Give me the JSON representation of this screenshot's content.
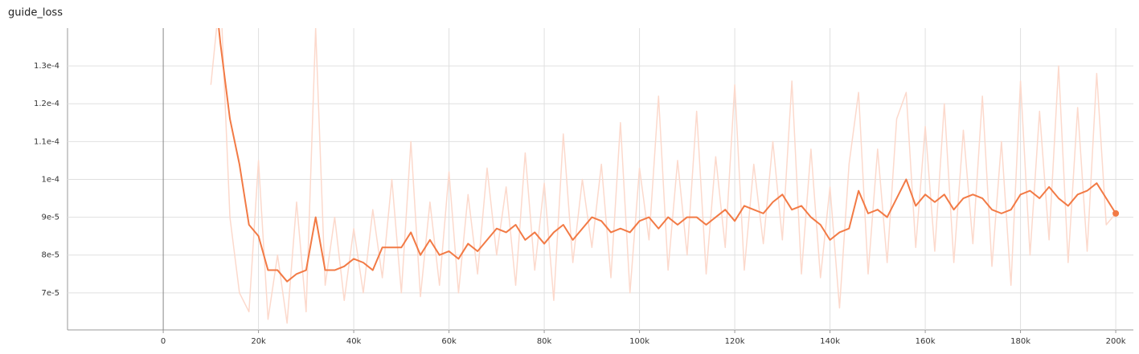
{
  "chart_data": {
    "type": "line",
    "title": "guide_loss",
    "x": [
      10000,
      12000,
      14000,
      16000,
      18000,
      20000,
      22000,
      24000,
      26000,
      28000,
      30000,
      32000,
      34000,
      36000,
      38000,
      40000,
      42000,
      44000,
      46000,
      48000,
      50000,
      52000,
      54000,
      56000,
      58000,
      60000,
      62000,
      64000,
      66000,
      68000,
      70000,
      72000,
      74000,
      76000,
      78000,
      80000,
      82000,
      84000,
      86000,
      88000,
      90000,
      92000,
      94000,
      96000,
      98000,
      100000,
      102000,
      104000,
      106000,
      108000,
      110000,
      112000,
      114000,
      116000,
      118000,
      120000,
      122000,
      124000,
      126000,
      128000,
      130000,
      132000,
      134000,
      136000,
      138000,
      140000,
      142000,
      144000,
      146000,
      148000,
      150000,
      152000,
      154000,
      156000,
      158000,
      160000,
      162000,
      164000,
      166000,
      168000,
      170000,
      172000,
      174000,
      176000,
      178000,
      180000,
      182000,
      184000,
      186000,
      188000,
      190000,
      192000,
      194000,
      196000,
      198000,
      200000
    ],
    "series": [
      {
        "color": "#fcd9cc",
        "values": [
          0.000125,
          0.00015,
          9e-05,
          7e-05,
          6.5e-05,
          0.000105,
          6.3e-05,
          8e-05,
          6.2e-05,
          9.4e-05,
          6.5e-05,
          0.00014,
          7.2e-05,
          9e-05,
          6.8e-05,
          8.7e-05,
          7e-05,
          9.2e-05,
          7.4e-05,
          0.0001,
          7e-05,
          0.00011,
          6.9e-05,
          9.4e-05,
          7.2e-05,
          0.000102,
          7e-05,
          9.6e-05,
          7.5e-05,
          0.000103,
          8e-05,
          9.8e-05,
          7.2e-05,
          0.000107,
          7.6e-05,
          9.9e-05,
          6.8e-05,
          0.000112,
          7.8e-05,
          0.0001,
          8.2e-05,
          0.000104,
          7.4e-05,
          0.000115,
          7e-05,
          0.000103,
          8.4e-05,
          0.000122,
          7.6e-05,
          0.000105,
          8e-05,
          0.000118,
          7.5e-05,
          0.000106,
          8.2e-05,
          0.000125,
          7.6e-05,
          0.000104,
          8.3e-05,
          0.00011,
          8.4e-05,
          0.000126,
          7.5e-05,
          0.000108,
          7.4e-05,
          9.8e-05,
          6.6e-05,
          0.000104,
          0.000123,
          7.5e-05,
          0.000108,
          7.8e-05,
          0.000116,
          0.000123,
          8.2e-05,
          0.000114,
          8.1e-05,
          0.00012,
          7.8e-05,
          0.000113,
          8.3e-05,
          0.000122,
          7.7e-05,
          0.00011,
          7.2e-05,
          0.000126,
          8e-05,
          0.000118,
          8.4e-05,
          0.00013,
          7.8e-05,
          0.000119,
          8.1e-05,
          0.000128,
          8.8e-05,
          9.1e-05
        ]
      },
      {
        "color": "#f27a45",
        "values": [
          0.00016,
          0.000136,
          0.000116,
          0.000104,
          8.8e-05,
          8.5e-05,
          7.6e-05,
          7.6e-05,
          7.3e-05,
          7.5e-05,
          7.6e-05,
          9e-05,
          7.6e-05,
          7.6e-05,
          7.7e-05,
          7.9e-05,
          7.8e-05,
          7.6e-05,
          8.2e-05,
          8.2e-05,
          8.2e-05,
          8.6e-05,
          8e-05,
          8.4e-05,
          8e-05,
          8.1e-05,
          7.9e-05,
          8.3e-05,
          8.1e-05,
          8.4e-05,
          8.7e-05,
          8.6e-05,
          8.8e-05,
          8.4e-05,
          8.6e-05,
          8.3e-05,
          8.6e-05,
          8.8e-05,
          8.4e-05,
          8.7e-05,
          9e-05,
          8.9e-05,
          8.6e-05,
          8.7e-05,
          8.6e-05,
          8.9e-05,
          9e-05,
          8.7e-05,
          9e-05,
          8.8e-05,
          9e-05,
          9e-05,
          8.8e-05,
          9e-05,
          9.2e-05,
          8.9e-05,
          9.3e-05,
          9.2e-05,
          9.1e-05,
          9.4e-05,
          9.6e-05,
          9.2e-05,
          9.3e-05,
          9e-05,
          8.8e-05,
          8.4e-05,
          8.6e-05,
          8.7e-05,
          9.7e-05,
          9.1e-05,
          9.2e-05,
          9e-05,
          9.5e-05,
          0.0001,
          9.3e-05,
          9.6e-05,
          9.4e-05,
          9.6e-05,
          9.2e-05,
          9.5e-05,
          9.6e-05,
          9.5e-05,
          9.2e-05,
          9.1e-05,
          9.2e-05,
          9.6e-05,
          9.7e-05,
          9.5e-05,
          9.8e-05,
          9.5e-05,
          9.3e-05,
          9.6e-05,
          9.7e-05,
          9.9e-05,
          9.5e-05,
          9.1e-05
        ]
      }
    ],
    "xlim": [
      -20100,
      203700
    ],
    "ylim": [
      6.02e-05,
      0.00014
    ],
    "xticks": [
      0,
      {
        "value": 20000,
        "label": "20k"
      },
      {
        "value": 40000,
        "label": "40k"
      },
      {
        "value": 60000,
        "label": "60k"
      },
      {
        "value": 80000,
        "label": "80k"
      },
      {
        "value": 100000,
        "label": "100k"
      },
      {
        "value": 120000,
        "label": "120k"
      },
      {
        "value": 140000,
        "label": "140k"
      },
      {
        "value": 160000,
        "label": "160k"
      },
      {
        "value": 180000,
        "label": "180k"
      },
      {
        "value": 200000,
        "label": "200k"
      }
    ],
    "yticks": [
      {
        "value": 7e-05,
        "label": "7e-5"
      },
      {
        "value": 8e-05,
        "label": "8e-5"
      },
      {
        "value": 9e-05,
        "label": "9e-5"
      },
      {
        "value": 0.0001,
        "label": "1e-4"
      },
      {
        "value": 0.00011,
        "label": "1.1e-4"
      },
      {
        "value": 0.00012,
        "label": "1.2e-4"
      },
      {
        "value": 0.00013,
        "label": "1.3e-4"
      }
    ],
    "grid": true
  }
}
